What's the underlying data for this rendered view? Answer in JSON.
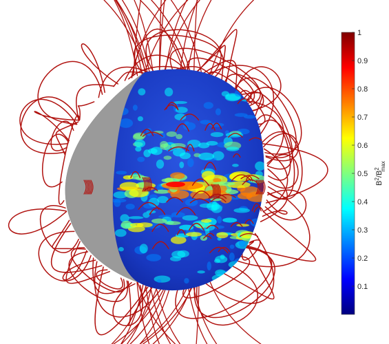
{
  "colorbar": {
    "ticks": [
      "1",
      "0.9",
      "0.8",
      "0.7",
      "0.6",
      "0.5",
      "0.4",
      "0.3",
      "0.2",
      "0.1"
    ],
    "label_main": "B",
    "label_sup1": "2",
    "label_sep": "/B",
    "label_sup2": "2",
    "label_sub": "max",
    "range": [
      0,
      1
    ],
    "colormap": "jet",
    "colors": [
      "#00007f",
      "#0000ff",
      "#007fff",
      "#00ffff",
      "#7fff7f",
      "#ffff00",
      "#ff7f00",
      "#ff0000",
      "#7f0000"
    ]
  },
  "render": {
    "field_line_color": "#b0120f",
    "surface_base_color": "#1f3fc8",
    "hidden_hemisphere_color": "#9a9a9a"
  }
}
